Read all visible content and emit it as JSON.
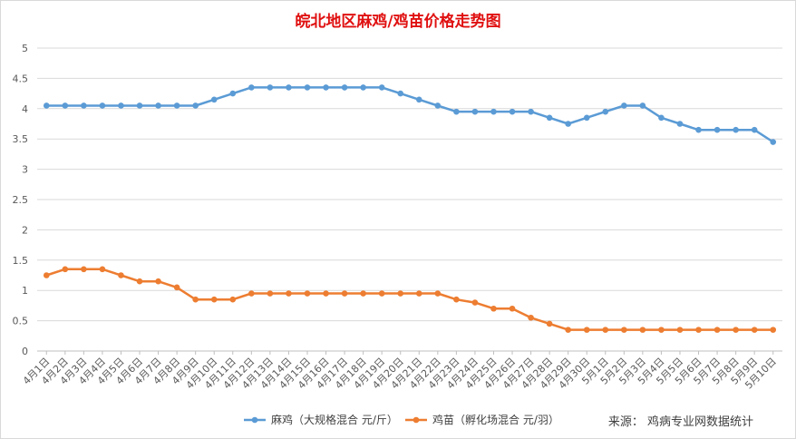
{
  "chart_data": {
    "type": "line",
    "title": "皖北地区麻鸡/鸡苗价格走势图",
    "ylim": [
      0,
      5
    ],
    "yticks": [
      "0",
      "0.5",
      "1",
      "1.5",
      "2",
      "2.5",
      "3",
      "3.5",
      "4",
      "4.5",
      "5"
    ],
    "grid": true,
    "legend_position": "bottom",
    "categories": [
      "4月1日",
      "4月2日",
      "4月3日",
      "4月4日",
      "4月5日",
      "4月6日",
      "4月7日",
      "4月8日",
      "4月9日",
      "4月10日",
      "4月11日",
      "4月12日",
      "4月13日",
      "4月14日",
      "4月15日",
      "4月16日",
      "4月17日",
      "4月18日",
      "4月19日",
      "4月20日",
      "4月21日",
      "4月22日",
      "4月23日",
      "4月24日",
      "4月25日",
      "4月26日",
      "4月27日",
      "4月28日",
      "4月29日",
      "4月30日",
      "5月1日",
      "5月2日",
      "5月3日",
      "5月4日",
      "5月5日",
      "5月6日",
      "5月7日",
      "5月8日",
      "5月9日",
      "5月10日"
    ],
    "series": [
      {
        "name": "麻鸡（大规格混合 元/斤）",
        "color": "#5b9bd5",
        "values": [
          4.05,
          4.05,
          4.05,
          4.05,
          4.05,
          4.05,
          4.05,
          4.05,
          4.05,
          4.15,
          4.25,
          4.35,
          4.35,
          4.35,
          4.35,
          4.35,
          4.35,
          4.35,
          4.35,
          4.25,
          4.15,
          4.05,
          3.95,
          3.95,
          3.95,
          3.95,
          3.95,
          3.85,
          3.75,
          3.85,
          3.95,
          4.05,
          4.05,
          3.85,
          3.75,
          3.65,
          3.65,
          3.65,
          3.65,
          3.45
        ]
      },
      {
        "name": "鸡苗（孵化场混合 元/羽）",
        "color": "#ed7d31",
        "values": [
          1.25,
          1.35,
          1.35,
          1.35,
          1.25,
          1.15,
          1.15,
          1.05,
          0.85,
          0.85,
          0.85,
          0.95,
          0.95,
          0.95,
          0.95,
          0.95,
          0.95,
          0.95,
          0.95,
          0.95,
          0.95,
          0.95,
          0.85,
          0.8,
          0.7,
          0.7,
          0.55,
          0.45,
          0.35,
          0.35,
          0.35,
          0.35,
          0.35,
          0.35,
          0.35,
          0.35,
          0.35,
          0.35,
          0.35,
          0.35
        ]
      }
    ]
  },
  "source_note": "来源：  鸡病专业网数据统计"
}
